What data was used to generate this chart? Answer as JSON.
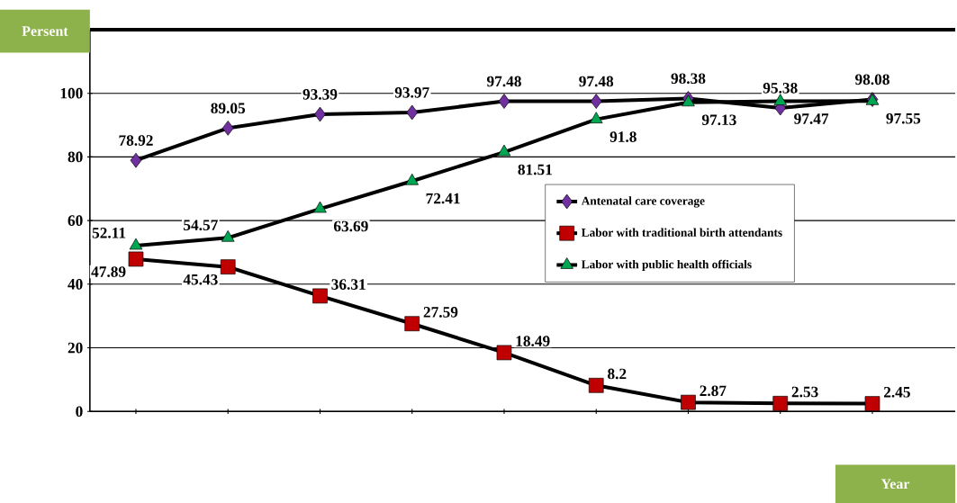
{
  "chart_data": {
    "type": "line",
    "xlabel": "Year",
    "ylabel": "Persent",
    "categories": [
      null,
      null,
      null,
      null,
      null,
      null,
      null,
      null,
      null
    ],
    "series": [
      {
        "name": "Antenatal care coverage",
        "color": "#7030a0",
        "marker": "diamond",
        "values": [
          78.92,
          89.05,
          93.39,
          93.97,
          97.48,
          97.48,
          98.38,
          95.38,
          98.08
        ]
      },
      {
        "name": "Labor with traditional birth attendants",
        "color": "#c00000",
        "marker": "square",
        "values": [
          47.89,
          45.43,
          36.31,
          27.59,
          18.49,
          8.2,
          2.87,
          2.53,
          2.45
        ]
      },
      {
        "name": "Labor with public health officials",
        "color": "#00a651",
        "marker": "triangle",
        "values": [
          52.11,
          54.57,
          63.69,
          72.41,
          81.51,
          91.8,
          97.13,
          97.47,
          97.55
        ]
      }
    ],
    "ylim": [
      0,
      120
    ],
    "yticks": [
      0,
      20,
      40,
      60,
      80,
      100
    ],
    "grid": "y",
    "legend": "right",
    "data_labels": true,
    "line_style": "solid"
  }
}
